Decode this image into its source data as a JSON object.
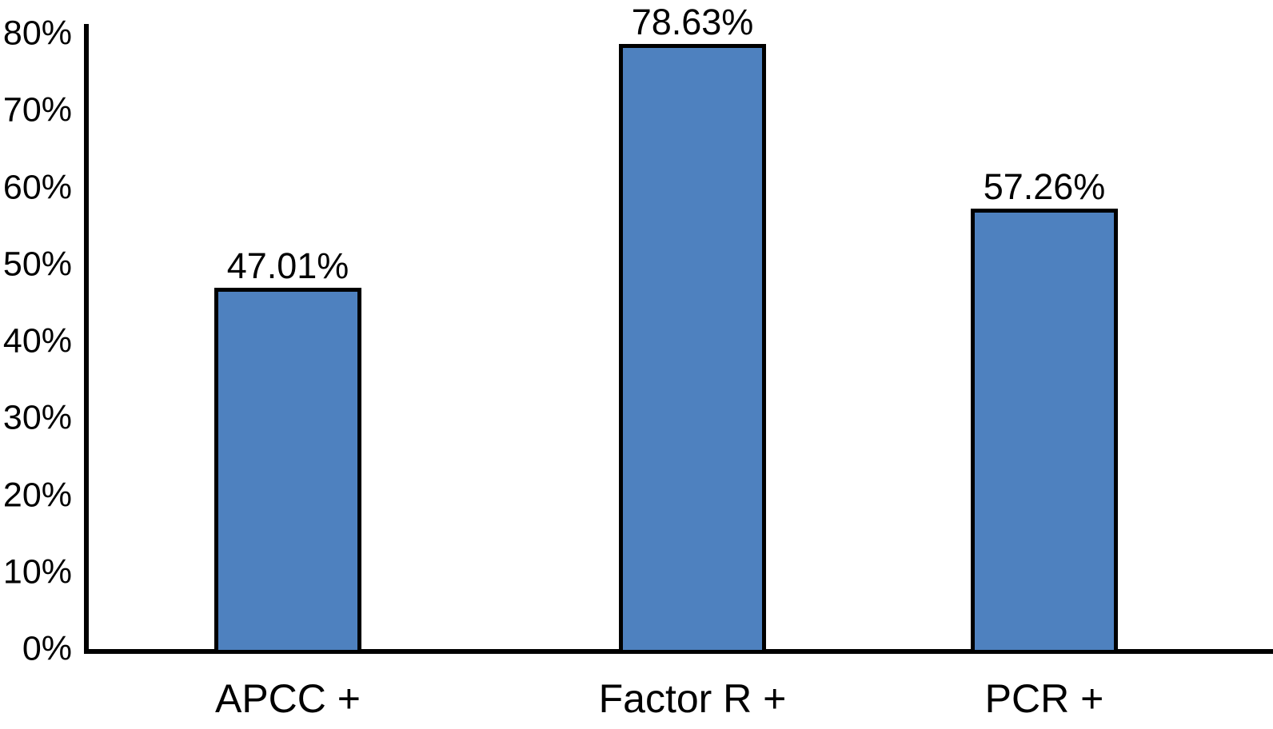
{
  "chart_data": {
    "type": "bar",
    "categories": [
      "APCC +",
      "Factor R +",
      "PCR +"
    ],
    "values": [
      47.01,
      78.63,
      57.26
    ],
    "data_labels": [
      "47.01%",
      "78.63%",
      "57.26%"
    ],
    "title": "",
    "xlabel": "",
    "ylabel": "",
    "ylim": [
      0,
      80
    ],
    "ytick_step": 10,
    "ytick_labels": [
      "0%",
      "10%",
      "20%",
      "30%",
      "40%",
      "50%",
      "60%",
      "70%",
      "80%"
    ],
    "grid": false,
    "legend": false,
    "bar_fill_color": "#4E81BF",
    "bar_border_color": "#000000",
    "axis_color": "#000000",
    "background_color": "#FFFFFF",
    "text_color": "#000000"
  }
}
